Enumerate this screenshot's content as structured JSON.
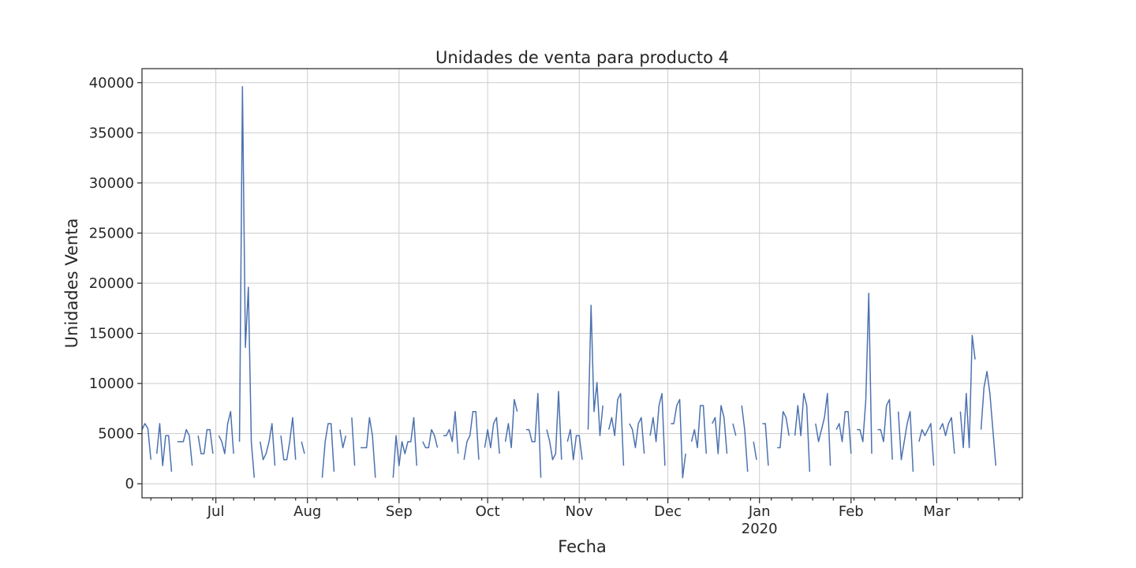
{
  "chart_data": {
    "type": "line",
    "title": "Unidades de venta para producto 4",
    "xlabel": "Fecha",
    "ylabel": "Unidades Venta",
    "ylim": [
      -1400,
      41400
    ],
    "xlim": [
      "2019-06-06",
      "2020-03-30"
    ],
    "yticks": [
      0,
      5000,
      10000,
      15000,
      20000,
      25000,
      30000,
      35000,
      40000
    ],
    "xticks": [
      {
        "date": "2019-07-01",
        "label": "Jul"
      },
      {
        "date": "2019-08-01",
        "label": "Aug"
      },
      {
        "date": "2019-09-01",
        "label": "Sep"
      },
      {
        "date": "2019-10-01",
        "label": "Oct"
      },
      {
        "date": "2019-11-01",
        "label": "Nov"
      },
      {
        "date": "2019-12-01",
        "label": "Dec"
      },
      {
        "date": "2020-01-01",
        "label": "Jan",
        "sublabel": "2020"
      },
      {
        "date": "2020-02-01",
        "label": "Feb"
      },
      {
        "date": "2020-03-01",
        "label": "Mar"
      }
    ],
    "grid": true,
    "series": [
      {
        "color": "#4c72b0",
        "points": [
          [
            "2019-06-06",
            5400
          ],
          [
            "2019-06-07",
            6000
          ],
          [
            "2019-06-08",
            5500
          ],
          [
            "2019-06-09",
            2400
          ],
          [
            "2019-06-11",
            3000
          ],
          [
            "2019-06-12",
            6000
          ],
          [
            "2019-06-13",
            1800
          ],
          [
            "2019-06-14",
            4800
          ],
          [
            "2019-06-15",
            4800
          ],
          [
            "2019-06-16",
            1200
          ],
          [
            "2019-06-18",
            4200
          ],
          [
            "2019-06-19",
            4200
          ],
          [
            "2019-06-20",
            4200
          ],
          [
            "2019-06-21",
            5400
          ],
          [
            "2019-06-22",
            4800
          ],
          [
            "2019-06-23",
            1800
          ],
          [
            "2019-06-25",
            4800
          ],
          [
            "2019-06-26",
            3000
          ],
          [
            "2019-06-27",
            3000
          ],
          [
            "2019-06-28",
            5400
          ],
          [
            "2019-06-29",
            5400
          ],
          [
            "2019-06-30",
            3000
          ],
          [
            "2019-07-02",
            4800
          ],
          [
            "2019-07-03",
            4200
          ],
          [
            "2019-07-04",
            3000
          ],
          [
            "2019-07-05",
            6000
          ],
          [
            "2019-07-06",
            7200
          ],
          [
            "2019-07-07",
            3000
          ],
          [
            "2019-07-09",
            4200
          ],
          [
            "2019-07-10",
            39600
          ],
          [
            "2019-07-11",
            13600
          ],
          [
            "2019-07-12",
            19600
          ],
          [
            "2019-07-13",
            4200
          ],
          [
            "2019-07-14",
            600
          ],
          [
            "2019-07-16",
            4200
          ],
          [
            "2019-07-17",
            2400
          ],
          [
            "2019-07-18",
            3000
          ],
          [
            "2019-07-19",
            4200
          ],
          [
            "2019-07-20",
            6000
          ],
          [
            "2019-07-21",
            1800
          ],
          [
            "2019-07-23",
            4800
          ],
          [
            "2019-07-24",
            2400
          ],
          [
            "2019-07-25",
            2400
          ],
          [
            "2019-07-26",
            4200
          ],
          [
            "2019-07-27",
            6600
          ],
          [
            "2019-07-28",
            2400
          ],
          [
            "2019-07-30",
            4200
          ],
          [
            "2019-07-31",
            3000
          ],
          [
            "2019-08-06",
            600
          ],
          [
            "2019-08-07",
            4200
          ],
          [
            "2019-08-08",
            6000
          ],
          [
            "2019-08-09",
            6000
          ],
          [
            "2019-08-10",
            1200
          ],
          [
            "2019-08-12",
            5400
          ],
          [
            "2019-08-13",
            3600
          ],
          [
            "2019-08-14",
            4800
          ],
          [
            "2019-08-16",
            6600
          ],
          [
            "2019-08-17",
            1800
          ],
          [
            "2019-08-19",
            3600
          ],
          [
            "2019-08-20",
            3600
          ],
          [
            "2019-08-21",
            3600
          ],
          [
            "2019-08-22",
            6600
          ],
          [
            "2019-08-23",
            4800
          ],
          [
            "2019-08-24",
            600
          ],
          [
            "2019-08-30",
            600
          ],
          [
            "2019-08-31",
            4800
          ],
          [
            "2019-09-01",
            1800
          ],
          [
            "2019-09-02",
            4200
          ],
          [
            "2019-09-03",
            3000
          ],
          [
            "2019-09-04",
            4200
          ],
          [
            "2019-09-05",
            4200
          ],
          [
            "2019-09-06",
            6600
          ],
          [
            "2019-09-07",
            1800
          ],
          [
            "2019-09-09",
            4200
          ],
          [
            "2019-09-10",
            3600
          ],
          [
            "2019-09-11",
            3600
          ],
          [
            "2019-09-12",
            5400
          ],
          [
            "2019-09-13",
            4800
          ],
          [
            "2019-09-14",
            3600
          ],
          [
            "2019-09-16",
            4800
          ],
          [
            "2019-09-17",
            4800
          ],
          [
            "2019-09-18",
            5400
          ],
          [
            "2019-09-19",
            4200
          ],
          [
            "2019-09-20",
            7200
          ],
          [
            "2019-09-21",
            3000
          ],
          [
            "2019-09-23",
            2400
          ],
          [
            "2019-09-24",
            4200
          ],
          [
            "2019-09-25",
            4800
          ],
          [
            "2019-09-26",
            7200
          ],
          [
            "2019-09-27",
            7200
          ],
          [
            "2019-09-28",
            2400
          ],
          [
            "2019-09-30",
            3600
          ],
          [
            "2019-10-01",
            5400
          ],
          [
            "2019-10-02",
            3600
          ],
          [
            "2019-10-03",
            6000
          ],
          [
            "2019-10-04",
            6600
          ],
          [
            "2019-10-05",
            3000
          ],
          [
            "2019-10-07",
            4200
          ],
          [
            "2019-10-08",
            6000
          ],
          [
            "2019-10-09",
            3600
          ],
          [
            "2019-10-10",
            8400
          ],
          [
            "2019-10-11",
            7200
          ],
          [
            "2019-10-14",
            5400
          ],
          [
            "2019-10-15",
            5400
          ],
          [
            "2019-10-16",
            4200
          ],
          [
            "2019-10-17",
            4200
          ],
          [
            "2019-10-18",
            9000
          ],
          [
            "2019-10-19",
            600
          ],
          [
            "2019-10-21",
            5400
          ],
          [
            "2019-10-22",
            4200
          ],
          [
            "2019-10-23",
            2400
          ],
          [
            "2019-10-24",
            3000
          ],
          [
            "2019-10-25",
            9200
          ],
          [
            "2019-10-26",
            2400
          ],
          [
            "2019-10-28",
            4200
          ],
          [
            "2019-10-29",
            5400
          ],
          [
            "2019-10-30",
            2400
          ],
          [
            "2019-10-31",
            4800
          ],
          [
            "2019-11-01",
            4800
          ],
          [
            "2019-11-02",
            2400
          ],
          [
            "2019-11-04",
            5400
          ],
          [
            "2019-11-05",
            17800
          ],
          [
            "2019-11-06",
            7200
          ],
          [
            "2019-11-07",
            10100
          ],
          [
            "2019-11-08",
            4800
          ],
          [
            "2019-11-09",
            7800
          ],
          [
            "2019-11-11",
            5400
          ],
          [
            "2019-11-12",
            6600
          ],
          [
            "2019-11-13",
            4800
          ],
          [
            "2019-11-14",
            8400
          ],
          [
            "2019-11-15",
            9000
          ],
          [
            "2019-11-16",
            1800
          ],
          [
            "2019-11-18",
            6000
          ],
          [
            "2019-11-19",
            5400
          ],
          [
            "2019-11-20",
            3600
          ],
          [
            "2019-11-21",
            6000
          ],
          [
            "2019-11-22",
            6600
          ],
          [
            "2019-11-23",
            3000
          ],
          [
            "2019-11-25",
            4800
          ],
          [
            "2019-11-26",
            6600
          ],
          [
            "2019-11-27",
            4200
          ],
          [
            "2019-11-28",
            7800
          ],
          [
            "2019-11-29",
            9000
          ],
          [
            "2019-11-30",
            1800
          ],
          [
            "2019-12-02",
            6000
          ],
          [
            "2019-12-03",
            6000
          ],
          [
            "2019-12-04",
            7800
          ],
          [
            "2019-12-05",
            8400
          ],
          [
            "2019-12-06",
            600
          ],
          [
            "2019-12-07",
            3000
          ],
          [
            "2019-12-09",
            4200
          ],
          [
            "2019-12-10",
            5400
          ],
          [
            "2019-12-11",
            3600
          ],
          [
            "2019-12-12",
            7800
          ],
          [
            "2019-12-13",
            7800
          ],
          [
            "2019-12-14",
            3000
          ],
          [
            "2019-12-16",
            6000
          ],
          [
            "2019-12-17",
            6600
          ],
          [
            "2019-12-18",
            3000
          ],
          [
            "2019-12-19",
            7800
          ],
          [
            "2019-12-20",
            6600
          ],
          [
            "2019-12-21",
            3000
          ],
          [
            "2019-12-23",
            6000
          ],
          [
            "2019-12-24",
            4800
          ],
          [
            "2019-12-26",
            7800
          ],
          [
            "2019-12-27",
            5400
          ],
          [
            "2019-12-28",
            1200
          ],
          [
            "2019-12-30",
            4200
          ],
          [
            "2019-12-31",
            2400
          ],
          [
            "2020-01-02",
            6000
          ],
          [
            "2020-01-03",
            6000
          ],
          [
            "2020-01-04",
            1800
          ],
          [
            "2020-01-07",
            3600
          ],
          [
            "2020-01-08",
            3600
          ],
          [
            "2020-01-09",
            7200
          ],
          [
            "2020-01-10",
            6600
          ],
          [
            "2020-01-11",
            4800
          ],
          [
            "2020-01-13",
            4800
          ],
          [
            "2020-01-14",
            7800
          ],
          [
            "2020-01-15",
            4800
          ],
          [
            "2020-01-16",
            9000
          ],
          [
            "2020-01-17",
            7800
          ],
          [
            "2020-01-18",
            1200
          ],
          [
            "2020-01-20",
            6000
          ],
          [
            "2020-01-21",
            4200
          ],
          [
            "2020-01-22",
            5400
          ],
          [
            "2020-01-23",
            6600
          ],
          [
            "2020-01-24",
            9000
          ],
          [
            "2020-01-25",
            1800
          ],
          [
            "2020-01-27",
            5400
          ],
          [
            "2020-01-28",
            6000
          ],
          [
            "2020-01-29",
            4200
          ],
          [
            "2020-01-30",
            7200
          ],
          [
            "2020-01-31",
            7200
          ],
          [
            "2020-02-01",
            3000
          ],
          [
            "2020-02-03",
            5400
          ],
          [
            "2020-02-04",
            5400
          ],
          [
            "2020-02-05",
            4200
          ],
          [
            "2020-02-06",
            8400
          ],
          [
            "2020-02-07",
            19000
          ],
          [
            "2020-02-08",
            3000
          ],
          [
            "2020-02-10",
            5400
          ],
          [
            "2020-02-11",
            5400
          ],
          [
            "2020-02-12",
            4200
          ],
          [
            "2020-02-13",
            7800
          ],
          [
            "2020-02-14",
            8400
          ],
          [
            "2020-02-15",
            2400
          ],
          [
            "2020-02-17",
            7200
          ],
          [
            "2020-02-18",
            2400
          ],
          [
            "2020-02-19",
            4200
          ],
          [
            "2020-02-20",
            6000
          ],
          [
            "2020-02-21",
            7200
          ],
          [
            "2020-02-22",
            1200
          ],
          [
            "2020-02-24",
            4200
          ],
          [
            "2020-02-25",
            5400
          ],
          [
            "2020-02-26",
            4800
          ],
          [
            "2020-02-27",
            5400
          ],
          [
            "2020-02-28",
            6000
          ],
          [
            "2020-02-29",
            1800
          ],
          [
            "2020-03-02",
            5400
          ],
          [
            "2020-03-03",
            6000
          ],
          [
            "2020-03-04",
            4800
          ],
          [
            "2020-03-05",
            6000
          ],
          [
            "2020-03-06",
            6600
          ],
          [
            "2020-03-07",
            3000
          ],
          [
            "2020-03-09",
            7200
          ],
          [
            "2020-03-10",
            3600
          ],
          [
            "2020-03-11",
            9000
          ],
          [
            "2020-03-12",
            3600
          ],
          [
            "2020-03-13",
            14800
          ],
          [
            "2020-03-14",
            12400
          ],
          [
            "2020-03-16",
            5400
          ],
          [
            "2020-03-17",
            9600
          ],
          [
            "2020-03-18",
            11200
          ],
          [
            "2020-03-19",
            9000
          ],
          [
            "2020-03-20",
            5400
          ],
          [
            "2020-03-21",
            1800
          ]
        ]
      }
    ]
  }
}
